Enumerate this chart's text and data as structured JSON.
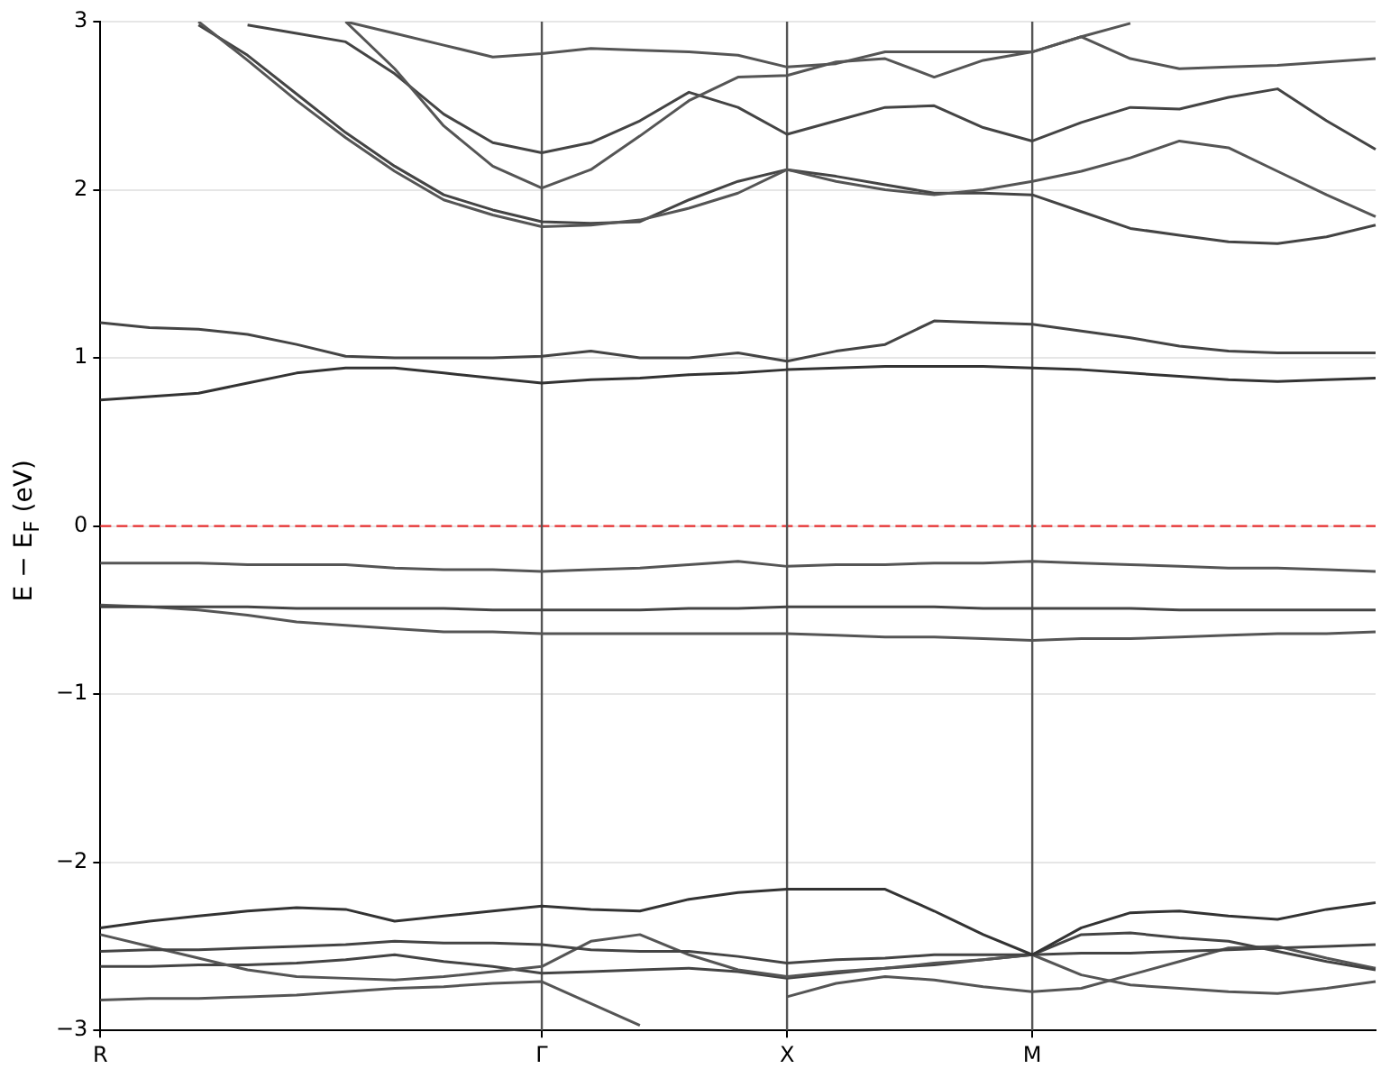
{
  "chart_data": {
    "type": "line",
    "ylabel": "E − E$_{F}$ (eV)",
    "categories": [
      "R",
      null,
      null,
      null,
      null,
      null,
      null,
      null,
      null,
      "Γ",
      null,
      null,
      null,
      null,
      "X",
      null,
      null,
      null,
      null,
      "M",
      null,
      null,
      null,
      null,
      null,
      null,
      null
    ],
    "ylim": [
      -3,
      3
    ],
    "yticks": [
      -3,
      -2,
      -1,
      0,
      1,
      2,
      3
    ],
    "grid": "y",
    "ref_lines": [
      {
        "axis": "y",
        "value": 0,
        "color": "#e83030",
        "line_style": "dashed"
      },
      {
        "axis": "x",
        "value": "Γ",
        "color": "#555555"
      },
      {
        "axis": "x",
        "value": "X",
        "color": "#555555"
      },
      {
        "axis": "x",
        "value": "M",
        "color": "#555555"
      }
    ],
    "series": [
      {
        "color": "#444444",
        "values": [
          1.21,
          1.18,
          1.17,
          1.14,
          1.08,
          1.01,
          1.0,
          1.0,
          1.0,
          1.01,
          1.04,
          1.0,
          1.0,
          1.03,
          0.98,
          1.04,
          1.08,
          1.22,
          1.21,
          1.2,
          1.16,
          1.12,
          1.07,
          1.04,
          1.03,
          1.03,
          1.03
        ]
      },
      {
        "color": "#333333",
        "values": [
          0.75,
          0.77,
          0.79,
          0.85,
          0.91,
          0.94,
          0.94,
          0.91,
          0.88,
          0.85,
          0.87,
          0.88,
          0.9,
          0.91,
          0.93,
          0.94,
          0.95,
          0.95,
          0.95,
          0.94,
          0.93,
          0.91,
          0.89,
          0.87,
          0.86,
          0.87,
          0.88
        ]
      },
      {
        "color": "#555555",
        "values": [
          -0.22,
          -0.22,
          -0.22,
          -0.23,
          -0.23,
          -0.23,
          -0.25,
          -0.26,
          -0.26,
          -0.27,
          -0.26,
          -0.25,
          -0.23,
          -0.21,
          -0.24,
          -0.23,
          -0.23,
          -0.22,
          -0.22,
          -0.21,
          -0.22,
          -0.23,
          -0.24,
          -0.25,
          -0.25,
          -0.26,
          -0.27
        ]
      },
      {
        "color": "#444444",
        "values": [
          -0.48,
          -0.48,
          -0.48,
          -0.48,
          -0.49,
          -0.49,
          -0.49,
          -0.49,
          -0.5,
          -0.5,
          -0.5,
          -0.5,
          -0.49,
          -0.49,
          -0.48,
          -0.48,
          -0.48,
          -0.48,
          -0.49,
          -0.49,
          -0.49,
          -0.49,
          -0.5,
          -0.5,
          -0.5,
          -0.5,
          -0.5
        ]
      },
      {
        "color": "#555555",
        "values": [
          -0.47,
          -0.48,
          -0.5,
          -0.53,
          -0.57,
          -0.59,
          -0.61,
          -0.63,
          -0.63,
          -0.64,
          -0.64,
          -0.64,
          -0.64,
          -0.64,
          -0.64,
          -0.65,
          -0.66,
          -0.66,
          -0.67,
          -0.68,
          -0.67,
          -0.67,
          -0.66,
          -0.65,
          -0.64,
          -0.64,
          -0.63
        ]
      },
      {
        "color": "#555555",
        "values": [
          null,
          null,
          3,
          2.77,
          2.53,
          2.31,
          2.11,
          1.94,
          1.85,
          1.78,
          1.79,
          1.82,
          1.89,
          1.98,
          2.12,
          2.05,
          2.0,
          1.97,
          2.0,
          2.05,
          2.11,
          2.19,
          2.29,
          2.25,
          2.11,
          1.97,
          1.84
        ]
      },
      {
        "color": "#444444",
        "values": [
          null,
          null,
          2.98,
          2.8,
          2.57,
          2.34,
          2.14,
          1.97,
          1.88,
          1.81,
          1.8,
          1.81,
          1.94,
          2.05,
          2.12,
          2.08,
          2.03,
          1.98,
          1.98,
          1.97,
          1.87,
          1.77,
          1.73,
          1.69,
          1.68,
          1.72,
          1.79
        ]
      },
      {
        "color": "#555555",
        "values": [
          null,
          null,
          null,
          null,
          null,
          3,
          2.72,
          2.38,
          2.14,
          2.01,
          2.12,
          2.32,
          2.53,
          2.67,
          2.68,
          2.76,
          2.78,
          2.67,
          2.77,
          2.82,
          2.91,
          2.99,
          null,
          null,
          null,
          null,
          null
        ]
      },
      {
        "color": "#444444",
        "values": [
          null,
          null,
          null,
          2.98,
          2.93,
          2.88,
          2.69,
          2.45,
          2.28,
          2.22,
          2.28,
          2.41,
          2.58,
          2.49,
          2.33,
          2.41,
          2.49,
          2.5,
          2.37,
          2.29,
          2.4,
          2.49,
          2.48,
          2.55,
          2.6,
          2.41,
          2.24
        ]
      },
      {
        "color": "#555555",
        "values": [
          null,
          null,
          null,
          null,
          null,
          3,
          2.93,
          2.86,
          2.79,
          2.81,
          2.84,
          2.83,
          2.82,
          2.8,
          2.73,
          2.75,
          2.82,
          2.82,
          2.82,
          2.82,
          2.91,
          2.78,
          2.72,
          2.73,
          2.74,
          2.76,
          2.78
        ]
      },
      {
        "color": "#333333",
        "values": [
          -2.39,
          -2.35,
          -2.32,
          -2.29,
          -2.27,
          -2.28,
          -2.35,
          -2.32,
          -2.29,
          -2.26,
          -2.28,
          -2.29,
          -2.22,
          -2.18,
          -2.16,
          -2.16,
          -2.16,
          -2.29,
          -2.43,
          -2.55,
          -2.39,
          -2.3,
          -2.29,
          -2.32,
          -2.34,
          -2.28,
          -2.24
        ]
      },
      {
        "color": "#444444",
        "values": [
          -2.53,
          -2.52,
          -2.52,
          -2.51,
          -2.5,
          -2.49,
          -2.47,
          -2.48,
          -2.48,
          -2.49,
          -2.52,
          -2.53,
          -2.53,
          -2.56,
          -2.6,
          -2.58,
          -2.57,
          -2.55,
          -2.55,
          -2.55,
          -2.54,
          -2.54,
          -2.53,
          -2.52,
          -2.51,
          -2.5,
          -2.49
        ]
      },
      {
        "color": "#555555",
        "values": [
          -2.43,
          -2.5,
          -2.57,
          -2.64,
          -2.68,
          -2.69,
          -2.7,
          -2.68,
          -2.65,
          -2.62,
          -2.47,
          -2.43,
          -2.55,
          -2.64,
          -2.68,
          -2.65,
          -2.63,
          -2.6,
          -2.58,
          -2.55,
          -2.67,
          -2.73,
          -2.75,
          -2.77,
          -2.78,
          -2.75,
          -2.71
        ]
      },
      {
        "color": "#444444",
        "values": [
          -2.62,
          -2.62,
          -2.61,
          -2.61,
          -2.6,
          -2.58,
          -2.55,
          -2.59,
          -2.62,
          -2.66,
          -2.65,
          -2.64,
          -2.63,
          -2.65,
          -2.69,
          -2.66,
          -2.63,
          -2.61,
          -2.58,
          -2.55,
          -2.43,
          -2.42,
          -2.45,
          -2.47,
          -2.53,
          -2.59,
          -2.64
        ]
      },
      {
        "color": "#555555",
        "values": [
          -2.82,
          -2.81,
          -2.81,
          -2.8,
          -2.79,
          -2.77,
          -2.75,
          -2.74,
          -2.72,
          -2.71,
          -2.84,
          -2.97,
          null,
          null,
          -2.8,
          -2.72,
          -2.68,
          -2.7,
          -2.74,
          -2.77,
          -2.75,
          -2.67,
          -2.59,
          -2.51,
          -2.5,
          -2.57,
          -2.63
        ]
      }
    ]
  }
}
